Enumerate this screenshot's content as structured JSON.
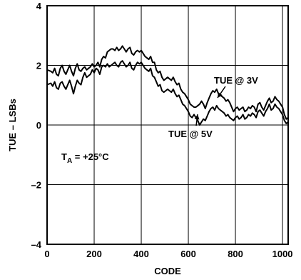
{
  "chart_data": {
    "type": "line",
    "xlabel": "CODE",
    "ylabel": "TUE – LSBs",
    "xlim": [
      0,
      1024
    ],
    "ylim": [
      -4,
      4
    ],
    "x_ticks": [
      "0",
      "200",
      "400",
      "600",
      "800",
      "1000"
    ],
    "x_tick_values": [
      0,
      200,
      400,
      600,
      800,
      1000
    ],
    "y_ticks": [
      "4",
      "2",
      "0",
      "–2",
      "–4"
    ],
    "y_tick_values": [
      4,
      2,
      0,
      -2,
      -4
    ],
    "grid": true,
    "annotations": {
      "ta_prefix": "T",
      "ta_sub": "A",
      "ta_suffix": " = +25°C",
      "series_3v": "TUE @ 3V",
      "series_5v": "TUE @ 5V"
    },
    "series": [
      {
        "name": "TUE @ 3V",
        "x": [
          0,
          16,
          24,
          32,
          40,
          48,
          56,
          64,
          72,
          80,
          88,
          96,
          104,
          112,
          120,
          128,
          136,
          144,
          152,
          160,
          168,
          176,
          184,
          192,
          200,
          208,
          216,
          224,
          232,
          240,
          248,
          256,
          264,
          272,
          280,
          288,
          296,
          304,
          312,
          320,
          328,
          336,
          344,
          352,
          360,
          368,
          376,
          384,
          392,
          400,
          408,
          416,
          424,
          432,
          440,
          448,
          456,
          464,
          472,
          480,
          488,
          496,
          504,
          512,
          520,
          528,
          536,
          544,
          552,
          560,
          568,
          576,
          584,
          592,
          600,
          608,
          616,
          624,
          632,
          640,
          648,
          656,
          664,
          672,
          680,
          688,
          696,
          704,
          712,
          720,
          728,
          736,
          744,
          752,
          760,
          768,
          776,
          784,
          792,
          800,
          808,
          816,
          824,
          832,
          840,
          848,
          856,
          864,
          872,
          880,
          888,
          896,
          904,
          912,
          920,
          928,
          936,
          944,
          952,
          960,
          968,
          976,
          984,
          992,
          1000,
          1008,
          1016,
          1024
        ],
        "y": [
          1.85,
          1.8,
          1.75,
          1.9,
          1.7,
          1.65,
          1.9,
          2.0,
          1.8,
          1.7,
          1.85,
          2.0,
          1.8,
          1.65,
          1.9,
          2.05,
          1.85,
          1.8,
          1.9,
          1.95,
          1.85,
          1.9,
          1.95,
          2.05,
          1.95,
          2.0,
          2.1,
          1.95,
          2.2,
          2.3,
          2.25,
          2.45,
          2.5,
          2.55,
          2.55,
          2.5,
          2.6,
          2.5,
          2.55,
          2.65,
          2.55,
          2.45,
          2.55,
          2.6,
          2.4,
          2.35,
          2.45,
          2.5,
          2.45,
          2.5,
          2.4,
          2.3,
          2.25,
          2.2,
          2.3,
          2.1,
          2.1,
          1.85,
          1.75,
          1.8,
          1.6,
          1.5,
          1.55,
          1.6,
          1.55,
          1.5,
          1.6,
          1.45,
          1.35,
          1.4,
          1.2,
          1.1,
          1.05,
          0.95,
          0.85,
          0.7,
          0.65,
          0.6,
          0.6,
          0.65,
          0.7,
          0.8,
          0.7,
          0.55,
          0.75,
          0.9,
          1.05,
          1.15,
          1.1,
          1.2,
          1.05,
          1.0,
          0.95,
          0.9,
          0.8,
          0.85,
          0.75,
          0.6,
          0.45,
          0.55,
          0.6,
          0.5,
          0.55,
          0.6,
          0.45,
          0.5,
          0.6,
          0.55,
          0.65,
          0.6,
          0.45,
          0.7,
          0.75,
          0.6,
          0.5,
          0.65,
          0.8,
          0.9,
          0.75,
          0.8,
          0.95,
          0.85,
          0.8,
          0.7,
          0.6,
          0.35,
          0.2,
          0.25
        ]
      },
      {
        "name": "TUE @ 5V",
        "x": [
          0,
          16,
          24,
          32,
          40,
          48,
          56,
          64,
          72,
          80,
          88,
          96,
          104,
          112,
          120,
          128,
          136,
          144,
          152,
          160,
          168,
          176,
          184,
          192,
          200,
          208,
          216,
          224,
          232,
          240,
          248,
          256,
          264,
          272,
          280,
          288,
          296,
          304,
          312,
          320,
          328,
          336,
          344,
          352,
          360,
          368,
          376,
          384,
          392,
          400,
          408,
          416,
          424,
          432,
          440,
          448,
          456,
          464,
          472,
          480,
          488,
          496,
          504,
          512,
          520,
          528,
          536,
          544,
          552,
          560,
          568,
          576,
          584,
          592,
          600,
          608,
          616,
          624,
          632,
          640,
          648,
          656,
          664,
          672,
          680,
          688,
          696,
          704,
          712,
          720,
          728,
          736,
          744,
          752,
          760,
          768,
          776,
          784,
          792,
          800,
          808,
          816,
          824,
          832,
          840,
          848,
          856,
          864,
          872,
          880,
          888,
          896,
          904,
          912,
          920,
          928,
          936,
          944,
          952,
          960,
          968,
          976,
          984,
          992,
          1000,
          1008,
          1016,
          1024
        ],
        "y": [
          1.35,
          1.4,
          1.3,
          1.45,
          1.25,
          1.2,
          1.4,
          1.45,
          1.3,
          1.2,
          1.35,
          1.5,
          1.3,
          1.05,
          1.3,
          1.5,
          1.4,
          1.35,
          1.6,
          1.75,
          1.6,
          1.65,
          1.7,
          1.85,
          1.75,
          1.9,
          1.85,
          1.7,
          1.95,
          2.0,
          1.95,
          2.05,
          1.95,
          2.0,
          2.05,
          2.1,
          2.0,
          1.95,
          2.1,
          2.15,
          2.05,
          1.95,
          2.0,
          2.1,
          1.9,
          1.85,
          2.0,
          2.1,
          2.05,
          2.1,
          2.0,
          1.9,
          1.85,
          1.8,
          1.9,
          1.65,
          1.6,
          1.45,
          1.3,
          1.35,
          1.15,
          1.1,
          1.15,
          1.2,
          1.15,
          1.1,
          1.2,
          1.05,
          0.95,
          1.0,
          0.85,
          0.7,
          0.65,
          0.55,
          0.45,
          0.3,
          0.25,
          0.35,
          0.25,
          0.15,
          0.0,
          0.1,
          0.2,
          0.15,
          0.3,
          0.45,
          0.55,
          0.6,
          0.5,
          0.65,
          0.55,
          0.5,
          0.45,
          0.4,
          0.3,
          0.35,
          0.25,
          0.2,
          0.15,
          0.25,
          0.3,
          0.2,
          0.25,
          0.35,
          0.2,
          0.25,
          0.35,
          0.3,
          0.4,
          0.35,
          0.25,
          0.45,
          0.5,
          0.4,
          0.3,
          0.45,
          0.55,
          0.7,
          0.5,
          0.55,
          0.7,
          0.6,
          0.55,
          0.45,
          0.35,
          0.15,
          0.05,
          0.1
        ]
      }
    ]
  }
}
